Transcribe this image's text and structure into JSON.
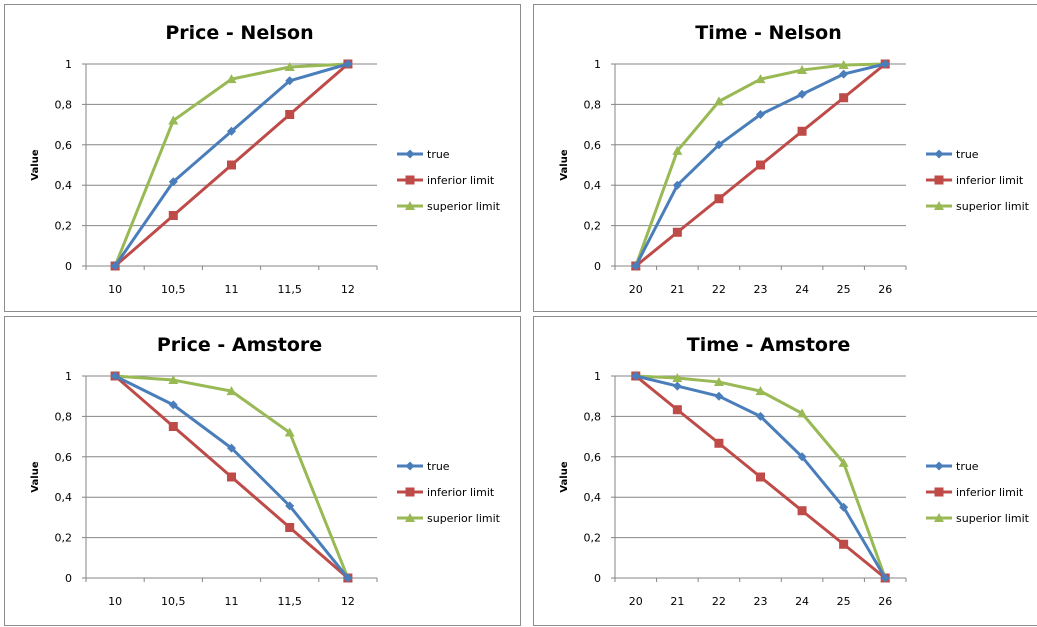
{
  "colors": {
    "true": "#4a7ebb",
    "inferior limit": "#be4b48",
    "superior limit": "#98b954",
    "grid": "#868686"
  },
  "chart_data": [
    {
      "type": "line",
      "title": "Price - Nelson",
      "ylabel": "Value",
      "xlabel": "",
      "x": [
        "10",
        "10,5",
        "11",
        "11,5",
        "12"
      ],
      "yticks": [
        "0",
        "0,2",
        "0,4",
        "0,6",
        "0,8",
        "1"
      ],
      "ylim": [
        0,
        1
      ],
      "grid": true,
      "legend": "right",
      "series": [
        {
          "name": "true",
          "marker": "diamond-icon",
          "values": [
            0,
            0.417,
            0.667,
            0.917,
            1
          ]
        },
        {
          "name": "inferior limit",
          "marker": "square-icon",
          "values": [
            0,
            0.25,
            0.5,
            0.75,
            1
          ]
        },
        {
          "name": "superior limit",
          "marker": "triangle-icon",
          "values": [
            0,
            0.72,
            0.925,
            0.985,
            1
          ]
        }
      ]
    },
    {
      "type": "line",
      "title": "Time - Nelson",
      "ylabel": "Value",
      "xlabel": "",
      "x": [
        "20",
        "21",
        "22",
        "23",
        "24",
        "25",
        "26"
      ],
      "yticks": [
        "0",
        "0,2",
        "0,4",
        "0,6",
        "0,8",
        "1"
      ],
      "ylim": [
        0,
        1
      ],
      "grid": true,
      "legend": "right",
      "series": [
        {
          "name": "true",
          "marker": "diamond-icon",
          "values": [
            0,
            0.4,
            0.6,
            0.75,
            0.85,
            0.95,
            1
          ]
        },
        {
          "name": "inferior limit",
          "marker": "square-icon",
          "values": [
            0,
            0.167,
            0.333,
            0.5,
            0.667,
            0.833,
            1
          ]
        },
        {
          "name": "superior limit",
          "marker": "triangle-icon",
          "values": [
            0,
            0.57,
            0.815,
            0.925,
            0.97,
            0.995,
            1
          ]
        }
      ]
    },
    {
      "type": "line",
      "title": "Price - Amstore",
      "ylabel": "Value",
      "xlabel": "",
      "x": [
        "10",
        "10,5",
        "11",
        "11,5",
        "12"
      ],
      "yticks": [
        "0",
        "0,2",
        "0,4",
        "0,6",
        "0,8",
        "1"
      ],
      "ylim": [
        0,
        1
      ],
      "grid": true,
      "legend": "right",
      "series": [
        {
          "name": "true",
          "marker": "diamond-icon",
          "values": [
            1,
            0.857,
            0.643,
            0.357,
            0
          ]
        },
        {
          "name": "inferior limit",
          "marker": "square-icon",
          "values": [
            1,
            0.75,
            0.5,
            0.25,
            0
          ]
        },
        {
          "name": "superior limit",
          "marker": "triangle-icon",
          "values": [
            1,
            0.98,
            0.925,
            0.72,
            0
          ]
        }
      ]
    },
    {
      "type": "line",
      "title": "Time - Amstore",
      "ylabel": "Value",
      "xlabel": "",
      "x": [
        "20",
        "21",
        "22",
        "23",
        "24",
        "25",
        "26"
      ],
      "yticks": [
        "0",
        "0,2",
        "0,4",
        "0,6",
        "0,8",
        "1"
      ],
      "ylim": [
        0,
        1
      ],
      "grid": true,
      "legend": "right",
      "series": [
        {
          "name": "true",
          "marker": "diamond-icon",
          "values": [
            1,
            0.95,
            0.9,
            0.8,
            0.6,
            0.35,
            0
          ]
        },
        {
          "name": "inferior limit",
          "marker": "square-icon",
          "values": [
            1,
            0.833,
            0.667,
            0.5,
            0.333,
            0.167,
            0
          ]
        },
        {
          "name": "superior limit",
          "marker": "triangle-icon",
          "values": [
            1,
            0.99,
            0.97,
            0.925,
            0.815,
            0.57,
            0
          ]
        }
      ]
    }
  ]
}
